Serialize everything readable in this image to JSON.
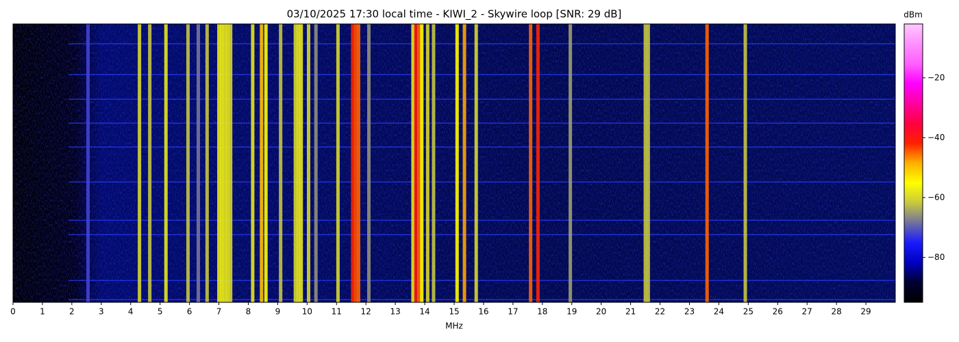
{
  "chart_data": {
    "type": "spectrogram",
    "title": "03/10/2025 17:30 local time - KIWI_2 - Skywire loop [SNR: 29 dB]",
    "x_label": "MHz",
    "colorbar_label": "dBm",
    "x": [
      2.55,
      4.3,
      4.65,
      5.2,
      5.95,
      6.3,
      6.6,
      7.0,
      7.1,
      7.2,
      7.3,
      7.4,
      8.15,
      8.45,
      8.6,
      9.1,
      9.6,
      9.7,
      9.8,
      10.05,
      10.3,
      11.05,
      11.55,
      11.65,
      11.75,
      12.1,
      13.6,
      13.7,
      13.8,
      13.9,
      14.1,
      14.3,
      15.1,
      15.35,
      15.75,
      17.6,
      17.85,
      18.95,
      21.5,
      21.6,
      23.6,
      24.9
    ],
    "values": [
      -72,
      -60,
      -62,
      -58,
      -62,
      -68,
      -62,
      -58,
      -57,
      -58,
      -58,
      -60,
      -58,
      -50,
      -55,
      -62,
      -60,
      -58,
      -58,
      -60,
      -66,
      -60,
      -42,
      -44,
      -45,
      -66,
      -58,
      -40,
      -45,
      -55,
      -60,
      -62,
      -55,
      -48,
      -60,
      -45,
      -42,
      -65,
      -62,
      -62,
      -45,
      -62
    ],
    "xlim": [
      0,
      30
    ],
    "xticks": [
      0,
      1,
      2,
      3,
      4,
      5,
      6,
      7,
      8,
      9,
      10,
      11,
      12,
      13,
      14,
      15,
      16,
      17,
      18,
      19,
      20,
      21,
      22,
      23,
      24,
      25,
      26,
      27,
      28,
      29
    ],
    "clim": [
      -95,
      -2
    ],
    "cticks": [
      {
        "value": -20,
        "label": "−20"
      },
      {
        "value": -40,
        "label": "−40"
      },
      {
        "value": -60,
        "label": "−60"
      },
      {
        "value": -80,
        "label": "−80"
      }
    ],
    "colormap": [
      "#000000",
      "#000030",
      "#0000c0",
      "#1a1aff",
      "#7070a0",
      "#c8c840",
      "#ffff00",
      "#ffb000",
      "#ff2000",
      "#ff0040",
      "#ff00a0",
      "#ff00ff",
      "#ff60ff",
      "#ff90ff",
      "#ffc8ff"
    ]
  }
}
